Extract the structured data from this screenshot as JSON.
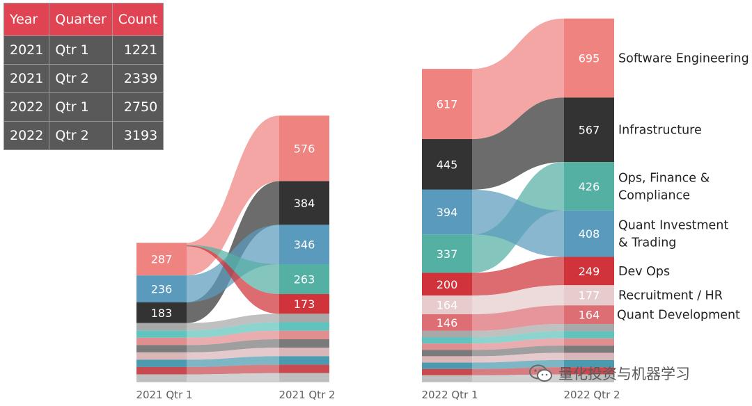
{
  "table": {
    "headers": [
      "Year",
      "Quarter",
      "Count"
    ],
    "rows": [
      {
        "year": "2021",
        "quarter": "Qtr 1",
        "count": "1221"
      },
      {
        "year": "2021",
        "quarter": "Qtr 2",
        "count": "2339"
      },
      {
        "year": "2022",
        "quarter": "Qtr 1",
        "count": "2750"
      },
      {
        "year": "2022",
        "quarter": "Qtr 2",
        "count": "3193"
      }
    ]
  },
  "chart_data": {
    "type": "sankey",
    "title": "",
    "periods": [
      "2021 Qtr 1",
      "2021 Qtr 2",
      "2022 Qtr 1",
      "2022 Qtr 2"
    ],
    "categories": [
      "Software Engineering",
      "Infrastructure",
      "Ops, Finance & Compliance",
      "Quant Investment & Trading",
      "Dev Ops",
      "Recruitment / HR",
      "Quant Development"
    ],
    "category_label_lines": [
      [
        "Software Engineering"
      ],
      [
        "Infrastructure"
      ],
      [
        "Ops, Finance &",
        "Compliance"
      ],
      [
        "Quant Investment",
        "& Trading"
      ],
      [
        "Dev Ops"
      ],
      [
        "Recruitment / HR"
      ],
      [
        "Quant Development"
      ]
    ],
    "colors": {
      "Software Engineering": "#ef8380",
      "Infrastructure": "#333333",
      "Ops, Finance & Compliance": "#55b0a4",
      "Quant Investment & Trading": "#5a9bbd",
      "Dev Ops": "#d03339",
      "Recruitment / HR": "#e6cccc",
      "Quant Development": "#dd6e74"
    },
    "series": [
      {
        "name": "2021 Qtr 1",
        "values": {
          "Software Engineering": 287,
          "Quant Investment & Trading": 236,
          "Infrastructure": 183
        }
      },
      {
        "name": "2021 Qtr 2",
        "values": {
          "Software Engineering": 576,
          "Infrastructure": 384,
          "Quant Investment & Trading": 346,
          "Ops, Finance & Compliance": 263,
          "Dev Ops": 173
        }
      },
      {
        "name": "2022 Qtr 1",
        "values": {
          "Software Engineering": 617,
          "Infrastructure": 445,
          "Quant Investment & Trading": 394,
          "Ops, Finance & Compliance": 337,
          "Dev Ops": 200,
          "Recruitment / HR": 164,
          "Quant Development": 146
        }
      },
      {
        "name": "2022 Qtr 2",
        "values": {
          "Software Engineering": 695,
          "Infrastructure": 567,
          "Ops, Finance & Compliance": 426,
          "Quant Investment & Trading": 408,
          "Dev Ops": 249,
          "Recruitment / HR": 177,
          "Quant Development": 164
        }
      }
    ],
    "totals": [
      1221,
      2339,
      2750,
      3193
    ]
  },
  "watermark": "量化投资与机器学习"
}
